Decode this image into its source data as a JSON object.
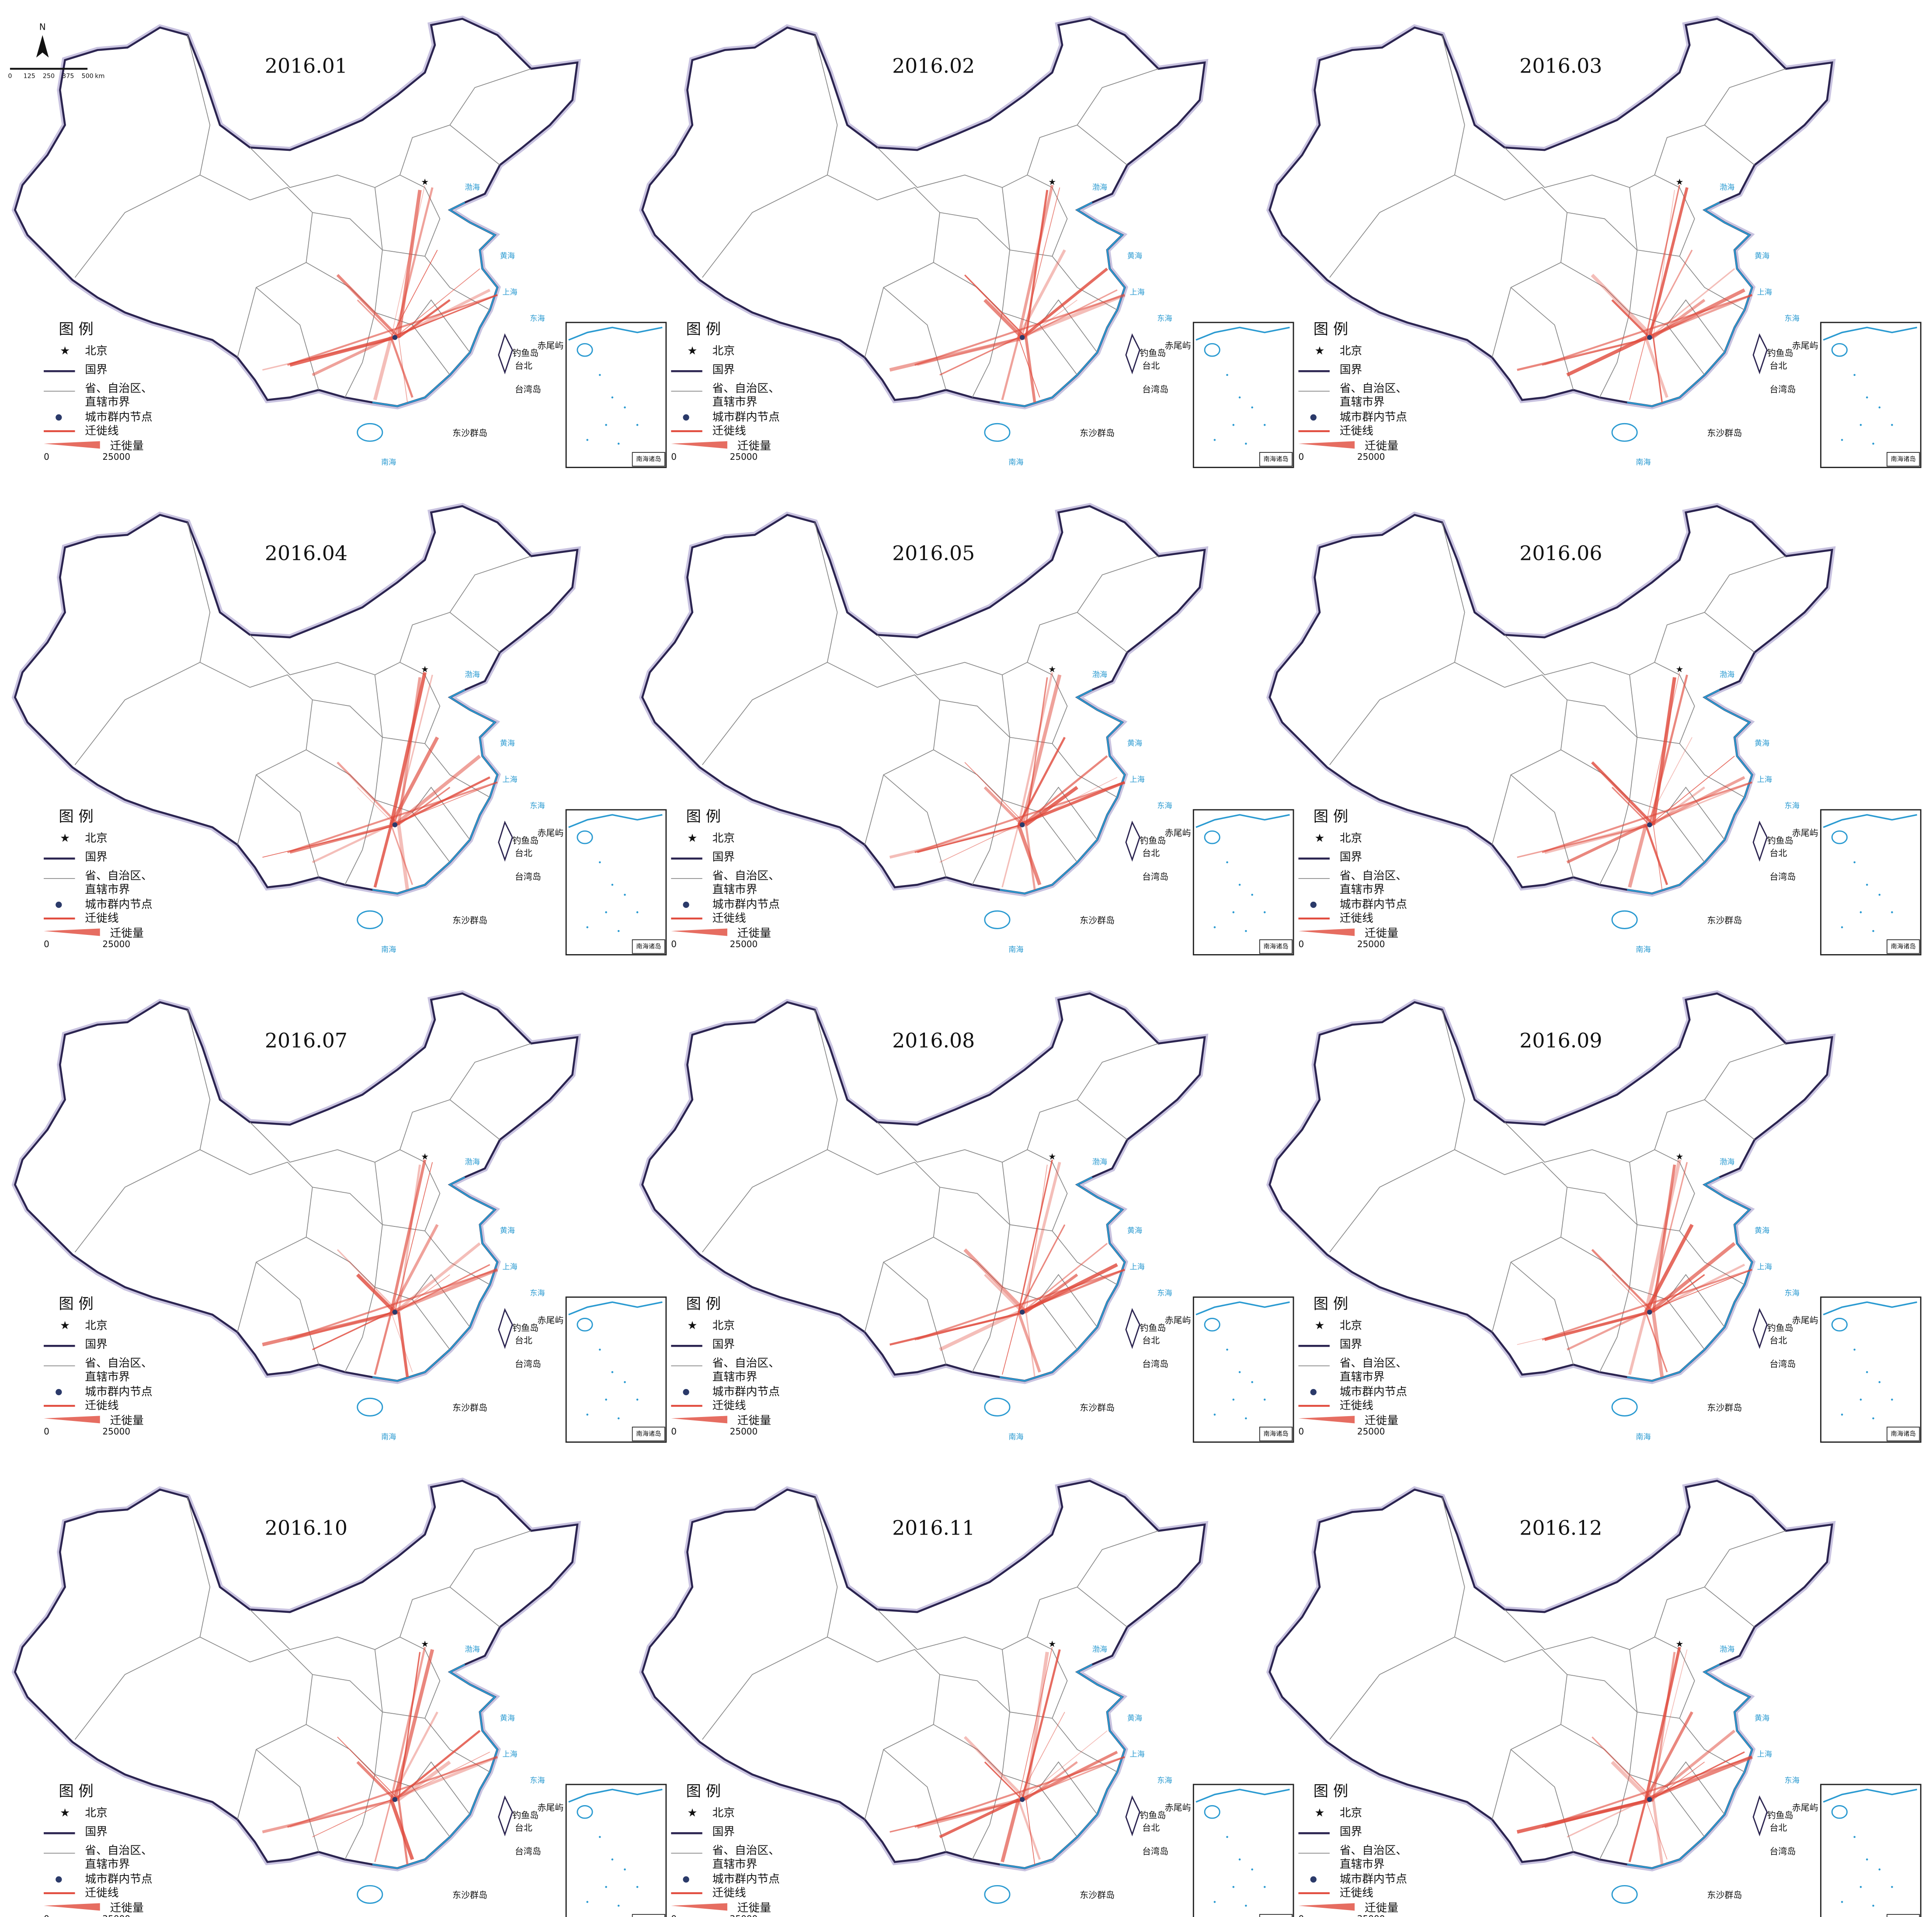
{
  "scale_bar": {
    "north": "N",
    "ticks": [
      0,
      125,
      250,
      375,
      500
    ],
    "unit": "km"
  },
  "panels": [
    {
      "title": "2016.01"
    },
    {
      "title": "2016.02"
    },
    {
      "title": "2016.03"
    },
    {
      "title": "2016.04"
    },
    {
      "title": "2016.05"
    },
    {
      "title": "2016.06"
    },
    {
      "title": "2016.07"
    },
    {
      "title": "2016.08"
    },
    {
      "title": "2016.09"
    },
    {
      "title": "2016.10"
    },
    {
      "title": "2016.11"
    },
    {
      "title": "2016.12"
    }
  ],
  "legend": {
    "title": "图 例",
    "beijing": "北京",
    "national_border": "国界",
    "provincial_border_1": "省、自治区、",
    "provincial_border_2": "直辖市界",
    "node": "城市群内节点",
    "flow_line": "迁徙线",
    "flow_volume": "迁徙量",
    "volume_min": 0,
    "volume_max": 25000
  },
  "map_labels": {
    "bohai": "渤海",
    "huanghai": "黄海",
    "donghai": "东海",
    "nanhai": "南海",
    "shanghai": "上海",
    "diaoyu": "钓鱼岛",
    "chiwei": "赤尾屿",
    "taibei": "台北",
    "taiwan": "台湾岛",
    "dongsha": "东沙群岛"
  },
  "inset": {
    "title": "南海诸岛"
  }
}
